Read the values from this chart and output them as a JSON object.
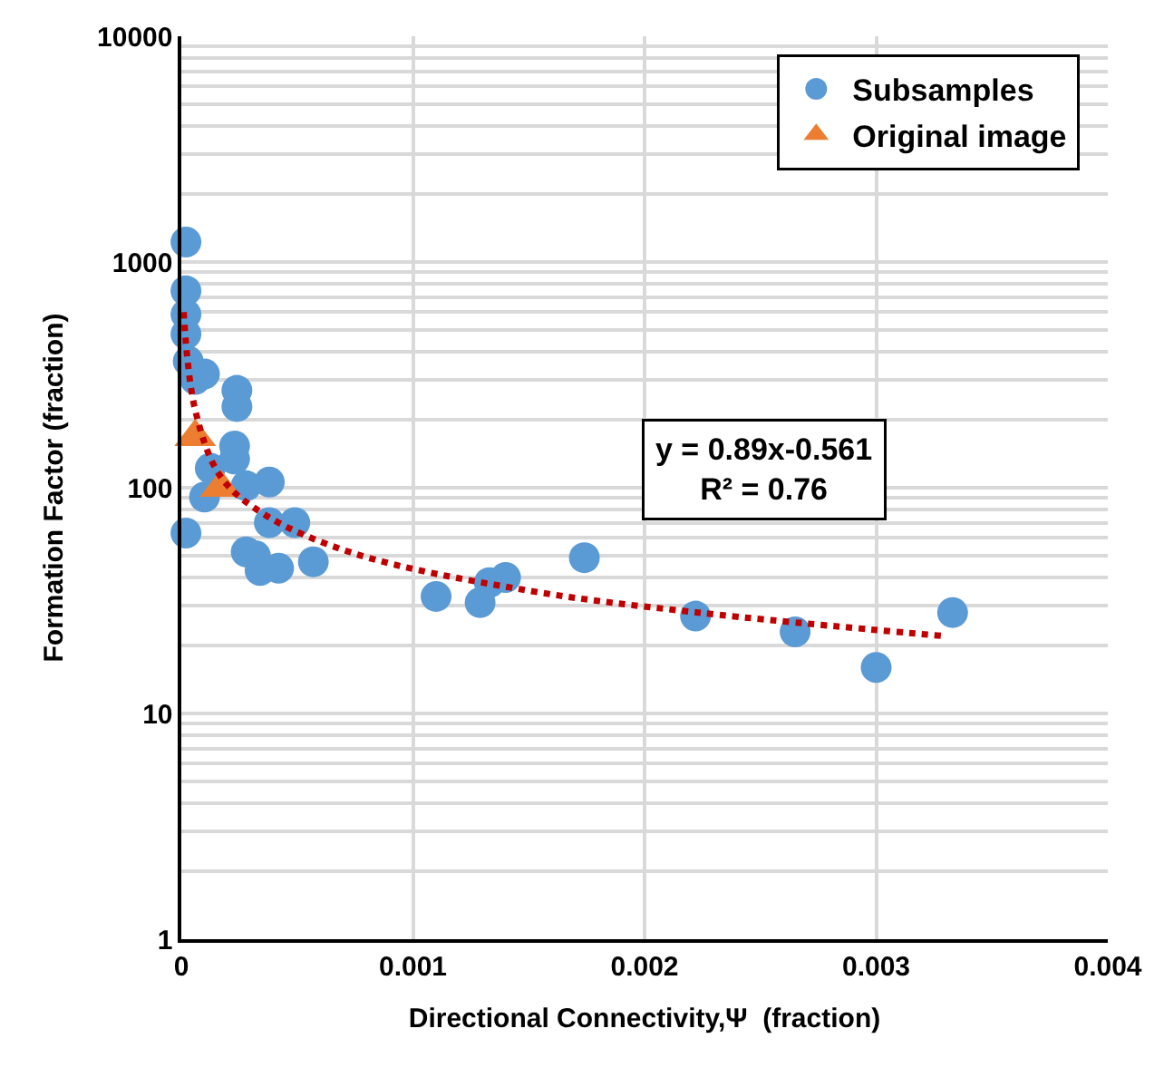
{
  "chart_data": {
    "type": "scatter",
    "xlabel": "Directional Connectivity,Ψ  (fraction)",
    "ylabel": "Formation Factor (fraction)",
    "xlim": [
      0,
      0.004
    ],
    "xticks": [
      0,
      0.001,
      0.002,
      0.003,
      0.004
    ],
    "ylim": [
      1,
      10000
    ],
    "yticks": [
      1,
      10,
      100,
      1000,
      10000
    ],
    "log": "y",
    "grid": true,
    "legend": "top right",
    "annotations": [
      "y = 0.89x-0.561\nR² = 0.76"
    ],
    "series": [
      {
        "name": "Subsamples",
        "color": "#5b9bd5",
        "marker": "circle",
        "x": [
          2e-05,
          2e-05,
          2e-05,
          2e-05,
          3e-05,
          0.0001,
          6e-05,
          0.00024,
          0.00024,
          0.00023,
          0.00023,
          0.000125,
          0.0001,
          0.00028,
          0.00038,
          0.00038,
          0.00049,
          2e-05,
          0.00028,
          0.00032,
          0.00034,
          0.00042,
          0.00057,
          0.0011,
          0.00129,
          0.00133,
          0.0014,
          0.00174,
          0.00222,
          0.00265,
          0.003,
          0.00333
        ],
        "values": [
          1225,
          745,
          586,
          479,
          363,
          319,
          302,
          270,
          229,
          153,
          134,
          122,
          91,
          102,
          106,
          70,
          70,
          63,
          52,
          50,
          43,
          44,
          47,
          33,
          31,
          38,
          40,
          49,
          27,
          23,
          16,
          28
        ]
      },
      {
        "name": "Original image",
        "color": "#ed7d31",
        "marker": "triangle",
        "x": [
          6e-05,
          0.00017
        ],
        "values": [
          168,
          100
        ]
      },
      {
        "type": "line",
        "color": "#c00000",
        "line_style": "dotted",
        "marker": "none",
        "x": [
          1e-05,
          6e-05,
          0.00017,
          0.00036,
          0.00075,
          0.0015,
          0.00223,
          0.0033
        ],
        "values": [
          600,
          221,
          112,
          76,
          51,
          35,
          28,
          22
        ]
      }
    ]
  }
}
